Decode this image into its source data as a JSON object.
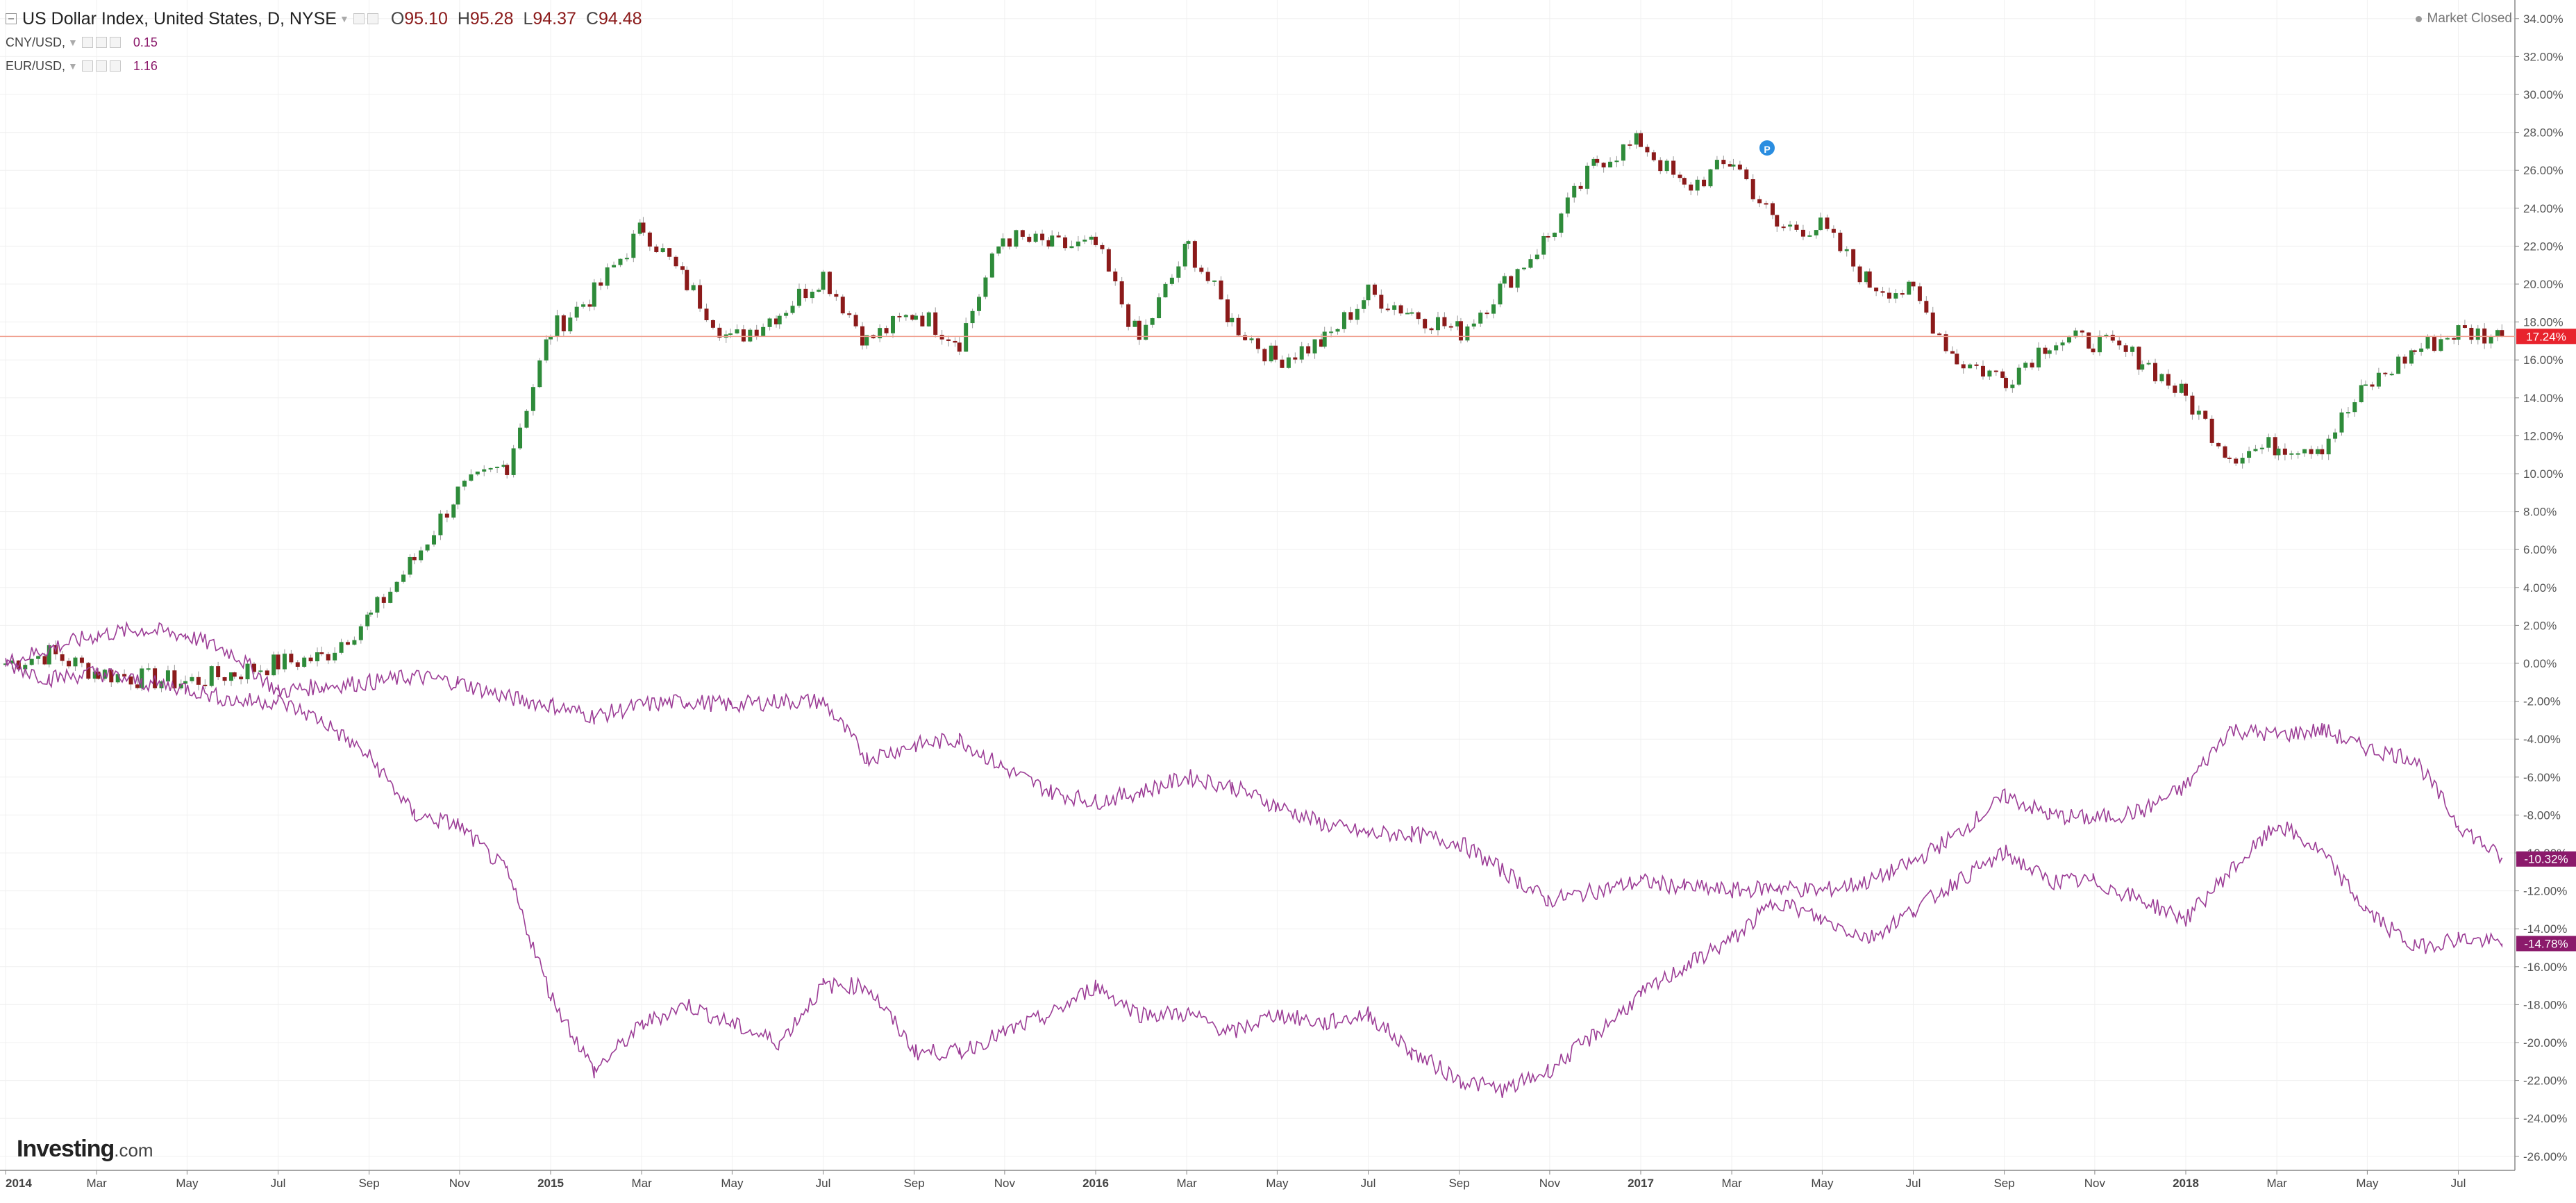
{
  "legend": {
    "main_title": "US Dollar Index, United States, D, NYSE",
    "ohlc": {
      "o_label": "O",
      "o": "95.10",
      "h_label": "H",
      "h": "95.28",
      "l_label": "L",
      "l": "94.37",
      "c_label": "C",
      "c": "94.48"
    },
    "compare": [
      {
        "name": "CNY/USD,",
        "value": "0.15"
      },
      {
        "name": "EUR/USD,",
        "value": "1.16"
      }
    ]
  },
  "market_status": "Market Closed",
  "watermark": {
    "brand": "Investing",
    "domain": ".com"
  },
  "colors": {
    "up": "#2e8b3a",
    "down": "#8b1a1a",
    "compare": "#9c3d96",
    "price_line": "#f0a090",
    "price_badge": "#e8232d",
    "compare_badge": "#8b1a6b",
    "grid": "#f0f0f0"
  },
  "chart_data": {
    "type": "line",
    "title": "US Dollar Index, United States, D, NYSE",
    "y_axis": {
      "unit": "%",
      "range": [
        -26,
        34
      ],
      "position": "right",
      "tick_labels": [
        "34.00%",
        "32.00%",
        "30.00%",
        "28.00%",
        "26.00%",
        "24.00%",
        "22.00%",
        "20.00%",
        "18.00%",
        "16.00%",
        "14.00%",
        "12.00%",
        "10.00%",
        "8.00%",
        "6.00%",
        "4.00%",
        "2.00%",
        "0.00%",
        "-2.00%",
        "-4.00%",
        "-6.00%",
        "-8.00%",
        "-10.00%",
        "-12.00%",
        "-14.00%",
        "-16.00%",
        "-18.00%",
        "-20.00%",
        "-22.00%",
        "-24.00%",
        "-26.00%"
      ]
    },
    "x_axis": {
      "range": [
        2014.0,
        2018.6
      ],
      "tick_labels": [
        {
          "label": "2014",
          "x": 2014.0,
          "bold": true
        },
        {
          "label": "Mar",
          "x": 2014.167
        },
        {
          "label": "May",
          "x": 2014.333
        },
        {
          "label": "Jul",
          "x": 2014.5
        },
        {
          "label": "Sep",
          "x": 2014.667
        },
        {
          "label": "Nov",
          "x": 2014.833
        },
        {
          "label": "2015",
          "x": 2015.0,
          "bold": true
        },
        {
          "label": "Mar",
          "x": 2015.167
        },
        {
          "label": "May",
          "x": 2015.333
        },
        {
          "label": "Jul",
          "x": 2015.5
        },
        {
          "label": "Sep",
          "x": 2015.667
        },
        {
          "label": "Nov",
          "x": 2015.833
        },
        {
          "label": "2016",
          "x": 2016.0,
          "bold": true
        },
        {
          "label": "Mar",
          "x": 2016.167
        },
        {
          "label": "May",
          "x": 2016.333
        },
        {
          "label": "Jul",
          "x": 2016.5
        },
        {
          "label": "Sep",
          "x": 2016.667
        },
        {
          "label": "Nov",
          "x": 2016.833
        },
        {
          "label": "2017",
          "x": 2017.0,
          "bold": true
        },
        {
          "label": "Mar",
          "x": 2017.167
        },
        {
          "label": "May",
          "x": 2017.333
        },
        {
          "label": "Jul",
          "x": 2017.5
        },
        {
          "label": "Sep",
          "x": 2017.667
        },
        {
          "label": "Nov",
          "x": 2017.833
        },
        {
          "label": "2018",
          "x": 2018.0,
          "bold": true
        },
        {
          "label": "Mar",
          "x": 2018.167
        },
        {
          "label": "May",
          "x": 2018.333
        },
        {
          "label": "Jul",
          "x": 2018.5
        }
      ]
    },
    "grid": true,
    "series": [
      {
        "name": "US Dollar Index",
        "style": "candlestick",
        "last_label": "17.24%",
        "x": [
          2014.0,
          2014.08,
          2014.17,
          2014.25,
          2014.33,
          2014.42,
          2014.5,
          2014.58,
          2014.67,
          2014.75,
          2014.83,
          2014.92,
          2015.0,
          2015.08,
          2015.17,
          2015.25,
          2015.33,
          2015.42,
          2015.5,
          2015.58,
          2015.67,
          2015.75,
          2015.83,
          2015.92,
          2016.0,
          2016.08,
          2016.17,
          2016.25,
          2016.33,
          2016.42,
          2016.5,
          2016.58,
          2016.67,
          2016.75,
          2016.83,
          2016.92,
          2017.0,
          2017.08,
          2017.17,
          2017.25,
          2017.33,
          2017.42,
          2017.5,
          2017.58,
          2017.67,
          2017.75,
          2017.83,
          2017.92,
          2018.0,
          2018.08,
          2018.17,
          2018.25,
          2018.33,
          2018.42,
          2018.5,
          2018.58
        ],
        "values": [
          0.0,
          0.5,
          -0.5,
          -0.8,
          -1.0,
          -0.5,
          0.0,
          0.3,
          2.5,
          5.5,
          9.0,
          10.5,
          17.5,
          19.5,
          23.0,
          20.0,
          17.0,
          18.5,
          20.5,
          17.0,
          18.5,
          17.0,
          22.5,
          22.0,
          22.0,
          17.0,
          22.0,
          18.0,
          16.0,
          17.0,
          19.5,
          18.5,
          17.5,
          20.0,
          22.5,
          26.5,
          27.5,
          25.0,
          26.5,
          23.0,
          23.0,
          20.0,
          19.5,
          16.0,
          15.0,
          17.0,
          17.0,
          16.0,
          14.0,
          11.0,
          11.5,
          11.5,
          14.5,
          16.5,
          17.5,
          17.24
        ]
      },
      {
        "name": "CNY/USD",
        "style": "line",
        "last_label": "-10.32%",
        "x": [
          2014.0,
          2014.08,
          2014.17,
          2014.25,
          2014.33,
          2014.42,
          2014.5,
          2014.58,
          2014.67,
          2014.75,
          2014.83,
          2014.92,
          2015.0,
          2015.08,
          2015.17,
          2015.25,
          2015.33,
          2015.42,
          2015.5,
          2015.58,
          2015.67,
          2015.75,
          2015.83,
          2015.92,
          2016.0,
          2016.08,
          2016.17,
          2016.25,
          2016.33,
          2016.42,
          2016.5,
          2016.58,
          2016.67,
          2016.75,
          2016.83,
          2016.92,
          2017.0,
          2017.08,
          2017.17,
          2017.25,
          2017.33,
          2017.42,
          2017.5,
          2017.58,
          2017.67,
          2017.75,
          2017.83,
          2017.92,
          2018.0,
          2018.08,
          2018.17,
          2018.25,
          2018.33,
          2018.42,
          2018.5,
          2018.58
        ],
        "values": [
          0.0,
          0.8,
          1.5,
          1.8,
          1.5,
          0.5,
          -1.5,
          -1.2,
          -1.0,
          -0.7,
          -1.0,
          -1.8,
          -2.2,
          -2.8,
          -2.2,
          -2.0,
          -2.2,
          -2.0,
          -2.0,
          -5.0,
          -4.3,
          -4.0,
          -5.5,
          -6.8,
          -7.3,
          -6.8,
          -6.0,
          -6.5,
          -7.5,
          -8.5,
          -9.0,
          -9.0,
          -9.5,
          -11.0,
          -12.5,
          -12.0,
          -11.5,
          -11.8,
          -12.0,
          -11.8,
          -12.0,
          -11.5,
          -10.5,
          -9.0,
          -7.0,
          -8.0,
          -8.2,
          -7.8,
          -6.5,
          -3.5,
          -3.8,
          -3.5,
          -4.5,
          -5.0,
          -8.5,
          -10.32
        ]
      },
      {
        "name": "EUR/USD",
        "style": "line",
        "last_label": "-14.78%",
        "x": [
          2014.0,
          2014.08,
          2014.17,
          2014.25,
          2014.33,
          2014.42,
          2014.5,
          2014.58,
          2014.67,
          2014.75,
          2014.83,
          2014.92,
          2015.0,
          2015.08,
          2015.17,
          2015.25,
          2015.33,
          2015.42,
          2015.5,
          2015.58,
          2015.67,
          2015.75,
          2015.83,
          2015.92,
          2016.0,
          2016.08,
          2016.17,
          2016.25,
          2016.33,
          2016.42,
          2016.5,
          2016.58,
          2016.67,
          2016.75,
          2016.83,
          2016.92,
          2017.0,
          2017.08,
          2017.17,
          2017.25,
          2017.33,
          2017.42,
          2017.5,
          2017.58,
          2017.67,
          2017.75,
          2017.83,
          2017.92,
          2018.0,
          2018.08,
          2018.17,
          2018.25,
          2018.33,
          2018.42,
          2018.5,
          2018.58
        ],
        "values": [
          0.0,
          -0.8,
          -0.5,
          -1.0,
          -1.3,
          -2.0,
          -2.0,
          -3.0,
          -5.0,
          -8.0,
          -8.5,
          -11.0,
          -17.5,
          -21.5,
          -19.0,
          -18.0,
          -19.0,
          -20.0,
          -17.0,
          -17.0,
          -20.5,
          -20.5,
          -19.5,
          -18.5,
          -17.0,
          -18.5,
          -18.5,
          -19.5,
          -18.5,
          -19.0,
          -18.5,
          -20.5,
          -22.0,
          -22.5,
          -21.5,
          -19.5,
          -17.5,
          -16.0,
          -14.5,
          -12.5,
          -13.5,
          -14.5,
          -13.0,
          -11.5,
          -10.0,
          -11.5,
          -11.5,
          -12.5,
          -13.5,
          -11.0,
          -8.5,
          -10.0,
          -13.0,
          -15.0,
          -14.5,
          -14.78
        ]
      }
    ]
  }
}
